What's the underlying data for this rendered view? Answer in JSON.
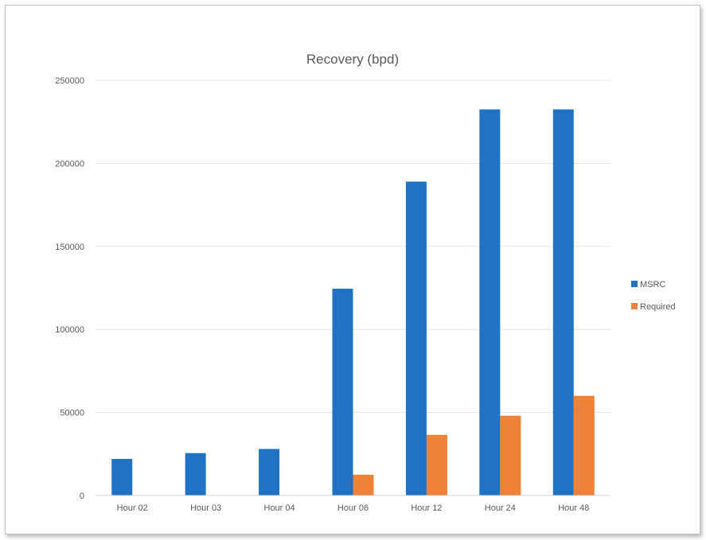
{
  "chart_data": {
    "type": "bar",
    "title": "Recovery (bpd)",
    "xlabel": "",
    "ylabel": "",
    "categories": [
      "Hour 02",
      "Hour 03",
      "Hour 04",
      "Hour 06",
      "Hour 12",
      "Hour 24",
      "Hour 48"
    ],
    "series": [
      {
        "name": "MSRC",
        "color": "#1f72c4",
        "values": [
          22000,
          25500,
          28000,
          124500,
          189000,
          232500,
          232500
        ]
      },
      {
        "name": "Required",
        "color": "#ee8236",
        "values": [
          0,
          0,
          0,
          12500,
          36500,
          48000,
          60000
        ]
      }
    ],
    "ylim": [
      0,
      250000
    ],
    "yticks": [
      "0",
      "50000",
      "100000",
      "150000",
      "200000",
      "250000"
    ],
    "grid": true,
    "legend_position": "right"
  }
}
